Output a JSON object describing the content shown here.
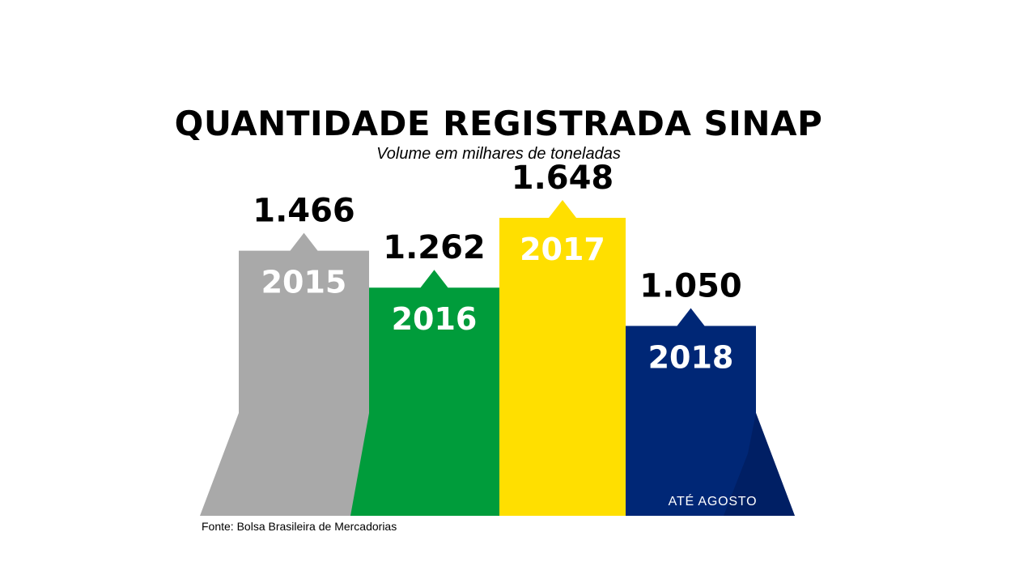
{
  "chart_data": {
    "type": "bar",
    "title": "QUANTIDADE REGISTRADA SINAP",
    "subtitle": "Volume em milhares de toneladas",
    "categories": [
      "2015",
      "2016",
      "2017",
      "2018"
    ],
    "values": [
      1466,
      1262,
      1648,
      1050
    ],
    "value_labels": [
      "1.466",
      "1.262",
      "1.648",
      "1.050"
    ],
    "colors": [
      "#a9a9a9",
      "#009c3b",
      "#ffdf00",
      "#002776"
    ],
    "note": "ATÉ AGOSTO",
    "note_for": "2018",
    "xlabel": "",
    "ylabel": "",
    "grid": false,
    "legend": "none"
  },
  "source": "Fonte:  Bolsa Brasileira de Mercadorias"
}
